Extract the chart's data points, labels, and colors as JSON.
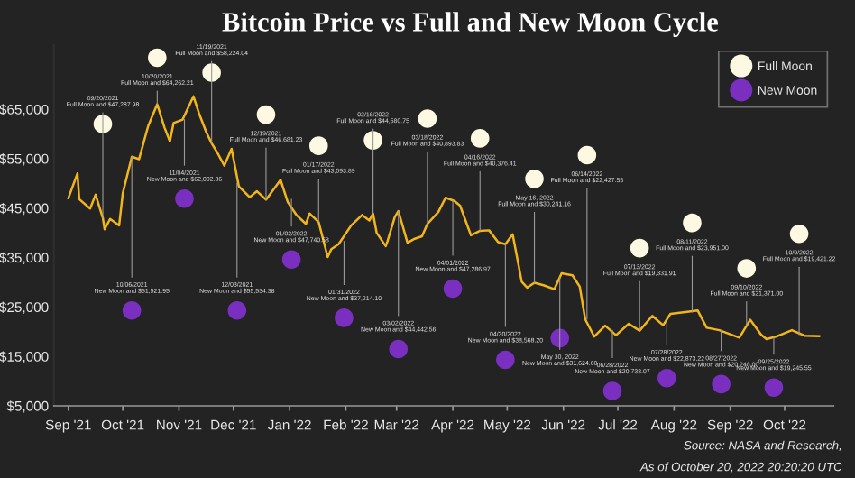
{
  "chart_data": {
    "type": "line",
    "title": "Bitcoin Price vs Full and New Moon Cycle",
    "xlim": [
      "2021-08-24",
      "2022-10-28"
    ],
    "xticks": [
      {
        "value": "2021-09-01",
        "label": "Sep '21"
      },
      {
        "value": "2021-10-01",
        "label": "Oct '21"
      },
      {
        "value": "2021-11-01",
        "label": "Nov '21"
      },
      {
        "value": "2021-12-01",
        "label": "Dec '21"
      },
      {
        "value": "2022-01-01",
        "label": "Jan '22"
      },
      {
        "value": "2022-02-01",
        "label": "Feb '22"
      },
      {
        "value": "2022-03-01",
        "label": "Mar '22"
      },
      {
        "value": "2022-04-01",
        "label": "Apr '22"
      },
      {
        "value": "2022-05-01",
        "label": "May '22"
      },
      {
        "value": "2022-06-01",
        "label": "Jun '22"
      },
      {
        "value": "2022-07-01",
        "label": "Jul '22"
      },
      {
        "value": "2022-08-01",
        "label": "Aug '22"
      },
      {
        "value": "2022-09-01",
        "label": "Sep '22"
      },
      {
        "value": "2022-10-01",
        "label": "Oct '22"
      }
    ],
    "ylim": [
      5000,
      78000
    ],
    "yticks": [
      {
        "value": 5000,
        "label": "$5,000"
      },
      {
        "value": 15000,
        "label": "$15,000"
      },
      {
        "value": 25000,
        "label": "$25,000"
      },
      {
        "value": 35000,
        "label": "$35,000"
      },
      {
        "value": 45000,
        "label": "$45,000"
      },
      {
        "value": 55000,
        "label": "$55,000"
      },
      {
        "value": 65000,
        "label": "$65,000"
      }
    ],
    "grid": false,
    "legend": "top right",
    "series": [
      {
        "type": "line",
        "color": "#f2b61c",
        "x": [
          "2021-09-01",
          "2021-09-06",
          "2021-09-07",
          "2021-09-13",
          "2021-09-16",
          "2021-09-20",
          "2021-09-21",
          "2021-09-24",
          "2021-09-29",
          "2021-10-01",
          "2021-10-06",
          "2021-10-10",
          "2021-10-15",
          "2021-10-20",
          "2021-10-24",
          "2021-10-27",
          "2021-10-29",
          "2021-11-03",
          "2021-11-09",
          "2021-11-12",
          "2021-11-16",
          "2021-11-19",
          "2021-11-22",
          "2021-11-26",
          "2021-11-30",
          "2021-12-04",
          "2021-12-10",
          "2021-12-14",
          "2021-12-19",
          "2021-12-27",
          "2021-12-31",
          "2022-01-05",
          "2022-01-10",
          "2022-01-12",
          "2022-01-17",
          "2022-01-22",
          "2022-01-24",
          "2022-01-28",
          "2022-02-04",
          "2022-02-10",
          "2022-02-14",
          "2022-02-16",
          "2022-02-18",
          "2022-02-23",
          "2022-02-24",
          "2022-02-28",
          "2022-03-02",
          "2022-03-07",
          "2022-03-11",
          "2022-03-15",
          "2022-03-18",
          "2022-03-24",
          "2022-03-28",
          "2022-04-02",
          "2022-04-05",
          "2022-04-11",
          "2022-04-16",
          "2022-04-21",
          "2022-04-26",
          "2022-04-30",
          "2022-05-04",
          "2022-05-09",
          "2022-05-12",
          "2022-05-16",
          "2022-05-21",
          "2022-05-27",
          "2022-05-31",
          "2022-06-06",
          "2022-06-10",
          "2022-06-13",
          "2022-06-18",
          "2022-06-24",
          "2022-06-30",
          "2022-07-07",
          "2022-07-13",
          "2022-07-20",
          "2022-07-26",
          "2022-07-30",
          "2022-08-14",
          "2022-08-19",
          "2022-08-26",
          "2022-09-06",
          "2022-09-12",
          "2022-09-18",
          "2022-09-21",
          "2022-09-27",
          "2022-10-05",
          "2022-10-12",
          "2022-10-20"
        ],
        "values": [
          47000,
          52000,
          46800,
          44900,
          47700,
          43000,
          40700,
          42800,
          41500,
          48000,
          55400,
          54900,
          61600,
          66000,
          61300,
          58500,
          62200,
          62900,
          67600,
          64200,
          60400,
          58100,
          56300,
          53600,
          57000,
          49400,
          47200,
          48400,
          46700,
          50700,
          46200,
          43500,
          41800,
          43900,
          42200,
          35100,
          36700,
          37700,
          41500,
          43600,
          42500,
          43900,
          40000,
          37300,
          38300,
          43200,
          44400,
          38000,
          38800,
          39300,
          41800,
          44200,
          47100,
          46400,
          45500,
          39500,
          40400,
          40500,
          38100,
          37700,
          39700,
          30100,
          28900,
          29900,
          29400,
          28600,
          31800,
          31400,
          29100,
          22500,
          19000,
          21200,
          19300,
          21600,
          20200,
          23200,
          21300,
          23600,
          24300,
          20800,
          20300,
          18800,
          22400,
          19400,
          18500,
          19100,
          20300,
          19200,
          19100
        ]
      },
      {
        "type": "scatter",
        "name": "Full Moon",
        "color": "#fdf8e1",
        "x": [
          "2021-09-20",
          "2021-10-20",
          "2021-11-19",
          "2021-12-19",
          "2022-01-17",
          "2022-02-16",
          "2022-03-18",
          "2022-04-16",
          "2022-05-16",
          "2022-06-14",
          "2022-07-13",
          "2022-08-11",
          "2022-09-10",
          "2022-10-09"
        ],
        "values": [
          62000,
          75400,
          72400,
          63900,
          57600,
          58700,
          63100,
          59100,
          50900,
          55700,
          36900,
          42000,
          32800,
          39800
        ]
      },
      {
        "type": "scatter",
        "name": "New Moon",
        "color": "#7a2fc0",
        "x": [
          "2021-10-06",
          "2021-11-04",
          "2021-12-03",
          "2022-01-02",
          "2022-01-31",
          "2022-03-02",
          "2022-04-01",
          "2022-04-30",
          "2022-05-30",
          "2022-06-28",
          "2022-07-28",
          "2022-08-27",
          "2022-09-25"
        ],
        "values": [
          24300,
          46900,
          24300,
          34600,
          22800,
          16500,
          28700,
          14300,
          18700,
          8000,
          10600,
          9400,
          8700
        ]
      }
    ],
    "annotations": [
      {
        "text": "09/20/2021\nFull Moon and $47,287.98",
        "x": "2021-09-20",
        "y": 43000
      },
      {
        "text": "10/20/2021\nFull Moon and $64,262.21",
        "x": "2021-10-20",
        "y": 66000
      },
      {
        "text": "11/19/2021\nFull Moon and $58,224.04",
        "x": "2021-11-19",
        "y": 58100
      },
      {
        "text": "12/19/2021\nFull Moon and $46,681.23",
        "x": "2021-12-19",
        "y": 46700
      },
      {
        "text": "01/17/2022\nFull Moon and $43,093.89",
        "x": "2022-01-17",
        "y": 42200
      },
      {
        "text": "02/16/2022\nFull Moon and $44,580.75",
        "x": "2022-02-16",
        "y": 43900
      },
      {
        "text": "03/18/2022\nFull Moon and $40,893.83",
        "x": "2022-03-18",
        "y": 41800
      },
      {
        "text": "04/16/2022\nFull Moon and $40,376.41",
        "x": "2022-04-16",
        "y": 40400
      },
      {
        "text": "May 16, 2022\nFull Moon and $30,241.16",
        "x": "2022-05-16",
        "y": 29900
      },
      {
        "text": "06/14/2022\nFull Moon and $22,427.55",
        "x": "2022-06-14",
        "y": 22500
      },
      {
        "text": "07/13/2022\nFull Moon and $19,331.91",
        "x": "2022-07-13",
        "y": 20200
      },
      {
        "text": "08/11/2022\nFull Moon and $23,951.00",
        "x": "2022-08-11",
        "y": 24000
      },
      {
        "text": "09/10/2022\nFull Moon and $21,371.00",
        "x": "2022-09-10",
        "y": 21400
      },
      {
        "text": "10/9/2022\nFull Moon and $19,421.22",
        "x": "2022-10-09",
        "y": 19400
      },
      {
        "text": "10/06/2021\nNew Moon and $51,521.95",
        "x": "2021-10-06",
        "y": 55400
      },
      {
        "text": "11/04/2021\nNew Moon and $62,002.36",
        "x": "2021-11-04",
        "y": 62900
      },
      {
        "text": "12/03/2021\nNew Moon and $55,534.38",
        "x": "2021-12-03",
        "y": 50000
      },
      {
        "text": "01/02/2022\nNew Moon and $47,740.58",
        "x": "2022-01-02",
        "y": 46800
      },
      {
        "text": "01/31/2022\nNew Moon and $37,214.10",
        "x": "2022-01-31",
        "y": 38300
      },
      {
        "text": "03/02/2022\nNew Moon and $44,442.56",
        "x": "2022-03-02",
        "y": 44400
      },
      {
        "text": "04/01/2022\nNew Moon and $47,286.97",
        "x": "2022-04-01",
        "y": 46500
      },
      {
        "text": "04/30/2022\nNew Moon and $38,568.20",
        "x": "2022-04-30",
        "y": 37700
      },
      {
        "text": "May 30, 2022\nNew Moon and $31,624.60",
        "x": "2022-05-30",
        "y": 31000
      },
      {
        "text": "06/28/2022\nNew Moon and $20,733.07",
        "x": "2022-06-28",
        "y": 20300
      },
      {
        "text": "07/28/2022\nNew Moon and $22,873.22",
        "x": "2022-07-28",
        "y": 22800
      },
      {
        "text": "08/27/2022\nNew Moon and $20,248.00",
        "x": "2022-08-27",
        "y": 20200
      },
      {
        "text": "09/25/2022\nNew Moon and $19,245.55",
        "x": "2022-09-25",
        "y": 18900
      },
      "Source: NASA and Research,",
      "As of October 20, 2022 20:20:20 UTC"
    ]
  }
}
